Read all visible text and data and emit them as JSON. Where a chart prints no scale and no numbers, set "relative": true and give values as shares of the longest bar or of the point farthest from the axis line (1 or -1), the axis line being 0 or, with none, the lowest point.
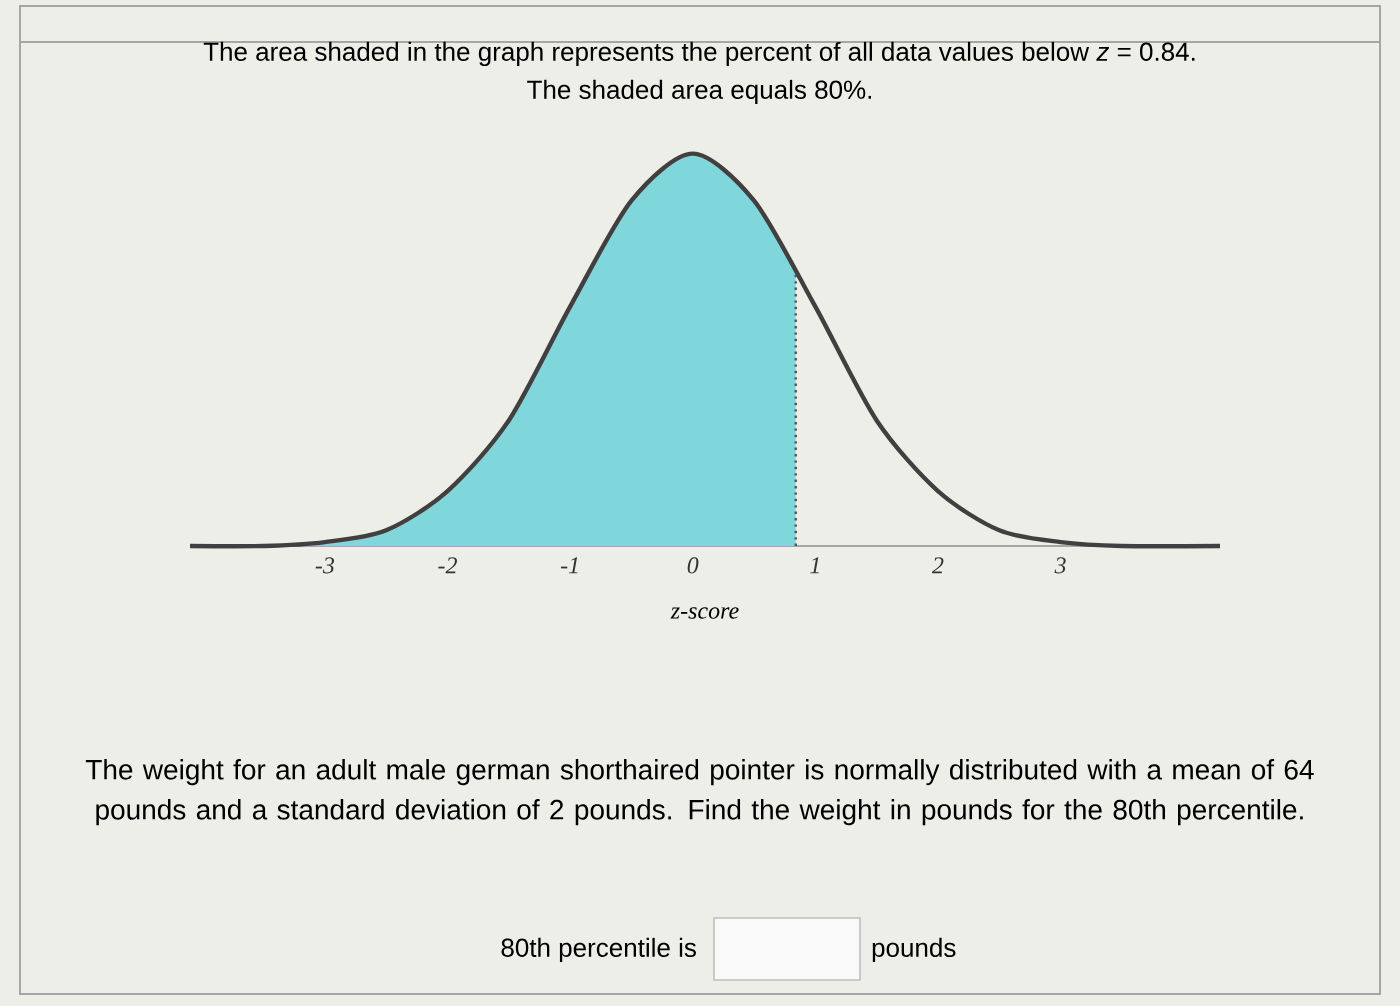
{
  "chart_data": {
    "type": "line",
    "title": "The area shaded in the graph represents the percent of all data values below *z* = 0.84.",
    "subtitle": "The shaded area equals 80%.",
    "xlabel": "z-score",
    "relative": true,
    "xlim": [
      -4.1,
      4.3
    ],
    "xticks": [
      -3,
      -2,
      -1,
      0,
      1,
      2,
      3
    ],
    "series": [
      {
        "type": "area",
        "color": "#7fd7dc",
        "x": [
          -4.1,
          -3.5,
          -3,
          -2.5,
          -2,
          -1.5,
          -1,
          -0.5,
          0,
          0.5,
          0.84
        ],
        "values": [
          0,
          0,
          0.01,
          0.04,
          0.14,
          0.32,
          0.61,
          0.88,
          1,
          0.88,
          0.7
        ]
      },
      {
        "color": "#404040",
        "x": [
          -4.1,
          -3.5,
          -3,
          -2.5,
          -2,
          -1.5,
          -1,
          -0.5,
          0,
          0.5,
          1,
          1.5,
          2,
          2.5,
          3,
          3.5,
          4.3
        ],
        "values": [
          0,
          0,
          0.01,
          0.04,
          0.14,
          0.32,
          0.61,
          0.88,
          1,
          0.88,
          0.61,
          0.32,
          0.14,
          0.04,
          0.01,
          0,
          0
        ]
      }
    ],
    "ref_lines": [
      {
        "axis": "x",
        "value": 0.84,
        "line_style": "dotted",
        "color": "#555555"
      }
    ],
    "annotations": [
      "The weight for an adult male german shorthaired pointer is normally distributed with a mean of 64 pounds and a standard deviation of 2 pounds. Find the weight in pounds for the 80th percentile.",
      "80th percentile is",
      "pounds"
    ]
  }
}
